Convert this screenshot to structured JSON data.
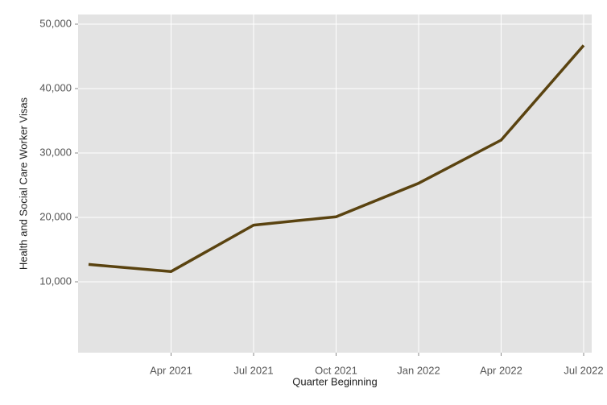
{
  "chart_data": {
    "type": "line",
    "x_label": "Quarter Beginning",
    "y_label": "Health and Social Care Worker Visas",
    "categories": [
      null,
      "Apr 2021",
      "Jul 2021",
      "Oct 2021",
      "Jan 2022",
      "Apr 2022",
      "Jul 2022"
    ],
    "series": [
      {
        "color": "#5a4310",
        "values": [
          12700,
          11600,
          18800,
          20100,
          25300,
          32000,
          46700
        ]
      }
    ],
    "ylim": [
      -1000,
      51500
    ],
    "yticks": [
      {
        "value": 10000,
        "label": "10,000"
      },
      {
        "value": 20000,
        "label": "20,000"
      },
      {
        "value": 30000,
        "label": "30,000"
      },
      {
        "value": 40000,
        "label": "40,000"
      },
      {
        "value": 50000,
        "label": "50,000"
      }
    ],
    "grid": true
  }
}
